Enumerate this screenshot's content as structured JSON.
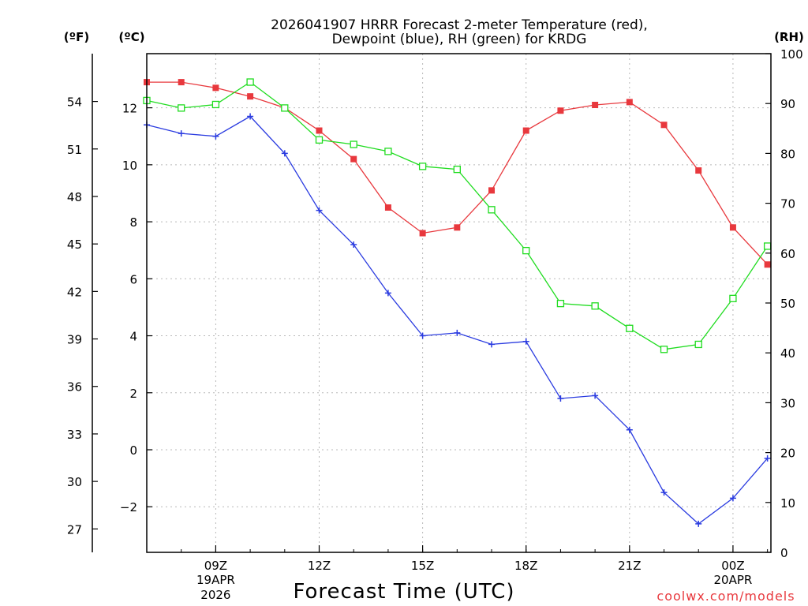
{
  "chart_data": {
    "type": "line",
    "title_line1": "2026041907 HRRR Forecast 2-meter Temperature (red),",
    "title_line2": "Dewpoint (blue), RH (green) for KRDG",
    "xlabel": "Forecast Time (UTC)",
    "credit": "coolwx.com/models",
    "units": {
      "fahrenheit": "(ºF)",
      "celsius": "(ºC)",
      "rh": "(RH)"
    },
    "x_hours": [
      7,
      8,
      9,
      10,
      11,
      12,
      13,
      14,
      15,
      16,
      17,
      18,
      19,
      20,
      21,
      22,
      23,
      24,
      25
    ],
    "x_range": [
      7,
      25.1
    ],
    "x_ticks": [
      {
        "hour": 9,
        "label": "09Z",
        "sub1": "19APR",
        "sub2": "2026"
      },
      {
        "hour": 12,
        "label": "12Z"
      },
      {
        "hour": 15,
        "label": "15Z"
      },
      {
        "hour": 18,
        "label": "18Z"
      },
      {
        "hour": 21,
        "label": "21Z"
      },
      {
        "hour": 24,
        "label": "00Z",
        "sub1": "20APR"
      }
    ],
    "ylim_celsius": [
      -3.6,
      13.9
    ],
    "ylim_rh": [
      0,
      100
    ],
    "yticks_celsius": [
      "-2",
      "0",
      "2",
      "4",
      "6",
      "8",
      "10",
      "12"
    ],
    "yticks_fahrenheit": [
      "27",
      "30",
      "33",
      "36",
      "39",
      "42",
      "45",
      "48",
      "51",
      "54"
    ],
    "yticks_rh": [
      "0",
      "10",
      "20",
      "30",
      "40",
      "50",
      "60",
      "70",
      "80",
      "90",
      "100"
    ],
    "grid": true,
    "series": [
      {
        "name": "Temperature",
        "unit": "C",
        "color": "#e8383d",
        "marker": "filled-square",
        "values": [
          12.9,
          12.9,
          12.7,
          12.4,
          12.0,
          11.2,
          10.2,
          8.5,
          7.6,
          7.8,
          9.1,
          11.2,
          11.9,
          12.1,
          12.2,
          11.4,
          9.8,
          7.8,
          6.5
        ]
      },
      {
        "name": "Dewpoint",
        "unit": "C",
        "color": "#2a3be0",
        "marker": "plus",
        "values": [
          11.4,
          11.1,
          11.0,
          11.7,
          10.4,
          8.4,
          7.2,
          5.5,
          4.0,
          4.1,
          3.7,
          3.8,
          1.8,
          1.9,
          0.7,
          -1.5,
          -2.6,
          -1.7,
          -0.3
        ]
      },
      {
        "name": "RH",
        "unit": "%",
        "color": "#1fdc1f",
        "marker": "open-square",
        "values": [
          90.6,
          89.1,
          89.8,
          94.3,
          89.1,
          82.7,
          81.8,
          80.4,
          77.4,
          76.8,
          68.7,
          60.5,
          49.9,
          49.4,
          44.9,
          40.7,
          41.7,
          50.9,
          61.4
        ]
      }
    ]
  }
}
